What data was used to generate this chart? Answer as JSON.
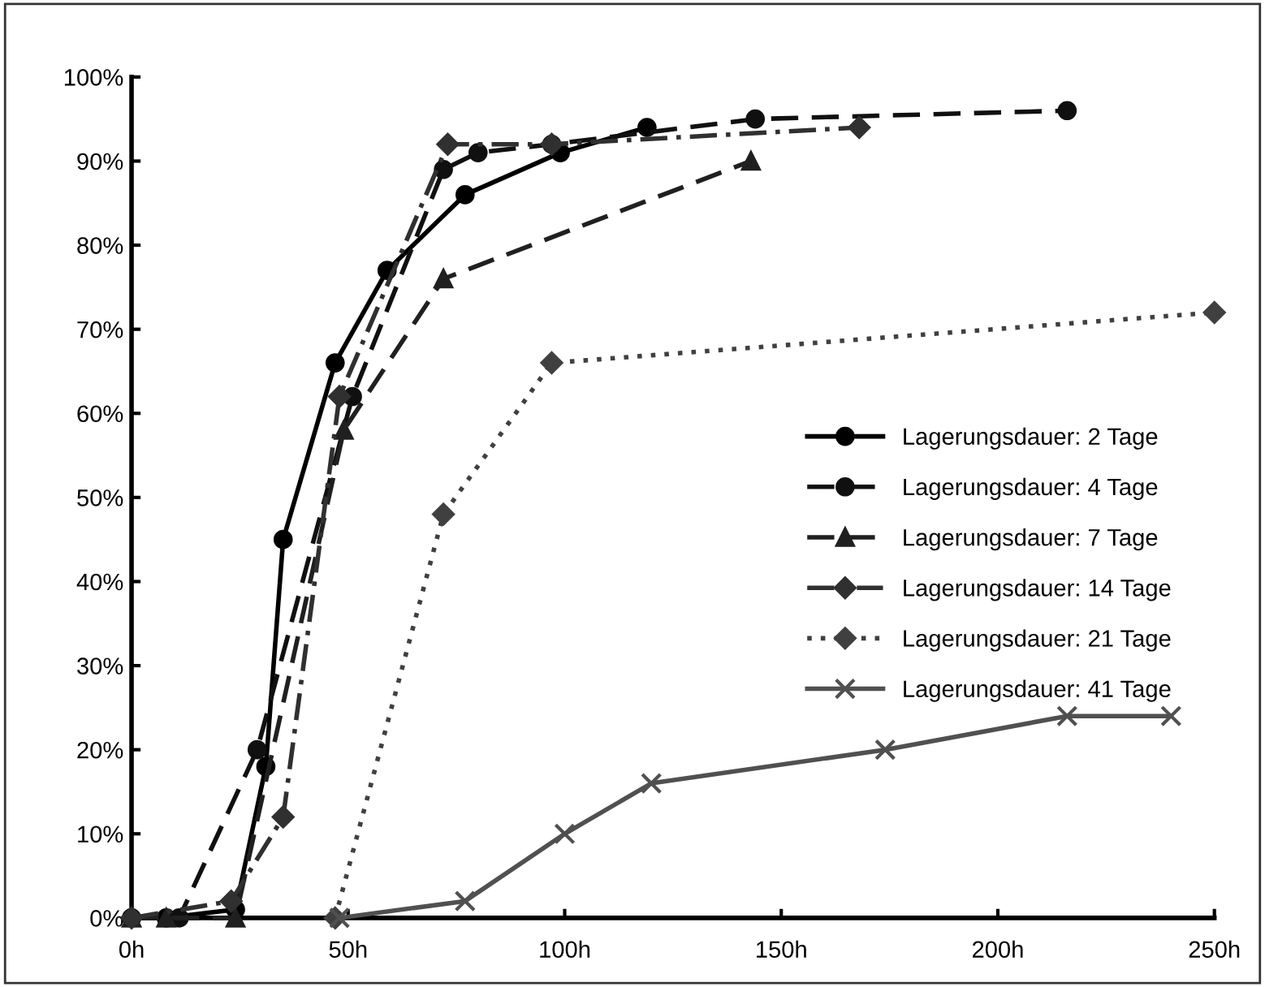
{
  "chart_data": {
    "type": "line",
    "xlim": [
      0,
      250
    ],
    "ylim": [
      0,
      100
    ],
    "xticks": [
      {
        "value": 0,
        "label": "0h"
      },
      {
        "value": 50,
        "label": "50h"
      },
      {
        "value": 100,
        "label": "100h"
      },
      {
        "value": 150,
        "label": "150h"
      },
      {
        "value": 200,
        "label": "200h"
      },
      {
        "value": 250,
        "label": "250h"
      }
    ],
    "yticks": [
      {
        "value": 0,
        "label": "0%"
      },
      {
        "value": 10,
        "label": "10%"
      },
      {
        "value": 20,
        "label": "20%"
      },
      {
        "value": 30,
        "label": "30%"
      },
      {
        "value": 40,
        "label": "40%"
      },
      {
        "value": 50,
        "label": "50%"
      },
      {
        "value": 60,
        "label": "60%"
      },
      {
        "value": 70,
        "label": "70%"
      },
      {
        "value": 80,
        "label": "80%"
      },
      {
        "value": 90,
        "label": "90%"
      },
      {
        "value": 100,
        "label": "100%"
      }
    ],
    "grid": false,
    "legend": "right",
    "series": [
      {
        "name": "Lagerungsdauer: 2 Tage",
        "color": "#000000",
        "marker": "circle",
        "line_style": "solid",
        "x": [
          0,
          8,
          24,
          31,
          35,
          47,
          59,
          77,
          99,
          119
        ],
        "values": [
          0,
          0,
          1,
          18,
          45,
          66,
          77,
          86,
          91,
          94
        ]
      },
      {
        "name": "Lagerungsdauer: 4 Tage",
        "color": "#101010",
        "marker": "circle",
        "line_style": "dashed",
        "x": [
          0,
          11,
          29,
          51,
          72,
          80,
          97,
          144,
          216
        ],
        "values": [
          0,
          0,
          20,
          62,
          89,
          91,
          92,
          95,
          96
        ]
      },
      {
        "name": "Lagerungsdauer: 7 Tage",
        "color": "#202020",
        "marker": "triangle",
        "line_style": "dashed",
        "x": [
          0,
          8,
          24,
          49,
          72,
          143
        ],
        "values": [
          0,
          0,
          0,
          58,
          76,
          90
        ]
      },
      {
        "name": "Lagerungsdauer: 14 Tage",
        "color": "#303030",
        "marker": "diamond",
        "line_style": "dashdot",
        "x": [
          0,
          23,
          35,
          48,
          73,
          97,
          168
        ],
        "values": [
          0,
          2,
          12,
          62,
          92,
          92,
          94
        ]
      },
      {
        "name": "Lagerungsdauer: 21 Tage",
        "color": "#404040",
        "marker": "diamond",
        "line_style": "dotted",
        "x": [
          47,
          72,
          97,
          250
        ],
        "values": [
          0,
          48,
          66,
          72
        ]
      },
      {
        "name": "Lagerungsdauer: 41 Tage",
        "color": "#505050",
        "marker": "cross",
        "line_style": "solid",
        "x": [
          48,
          77,
          100,
          120,
          174,
          216,
          240
        ],
        "values": [
          0,
          2,
          10,
          16,
          20,
          24,
          24
        ]
      }
    ]
  }
}
